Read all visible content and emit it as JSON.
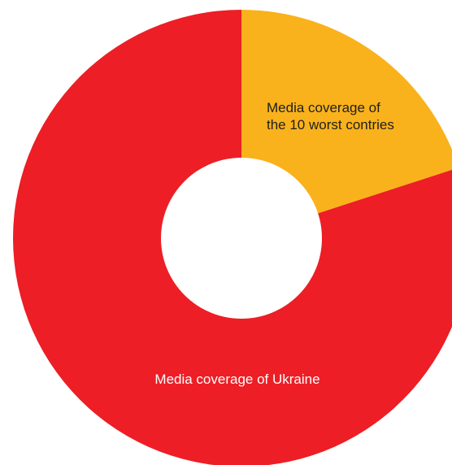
{
  "chart_data": {
    "type": "pie",
    "donut": true,
    "slices": [
      {
        "label_lines": [
          "Media coverage of",
          "the 10 worst contries"
        ],
        "value": 20,
        "color": "#F9B21B",
        "label_color": "#1f1f1f"
      },
      {
        "label_lines": [
          "Media coverage of Ukraine"
        ],
        "value": 80,
        "color": "#ED1E25",
        "label_color": "#ffffff"
      }
    ],
    "legend": "none",
    "title": ""
  }
}
